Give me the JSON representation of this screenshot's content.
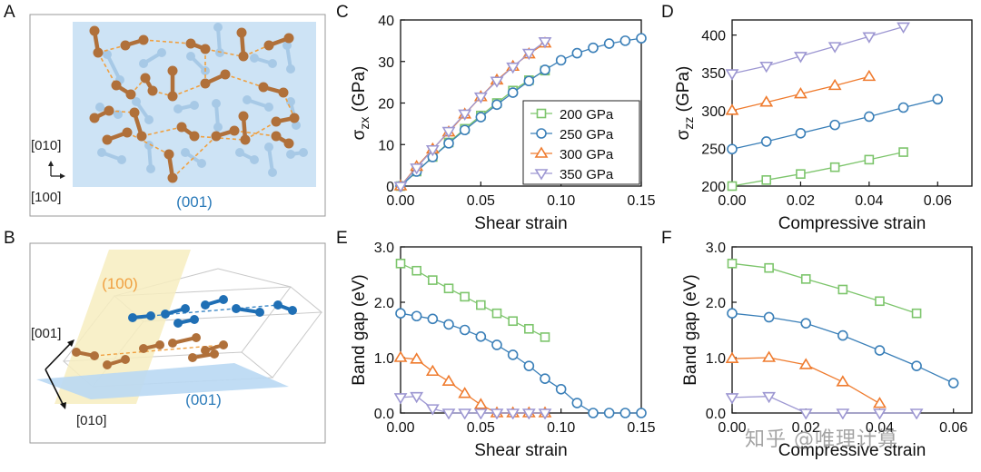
{
  "panel_labels": {
    "A": "A",
    "B": "B",
    "C": "C",
    "D": "D",
    "E": "E",
    "F": "F"
  },
  "panel_a": {
    "plane_label": "(001)",
    "axis_y_label": "[010]",
    "axis_x_label": "[100]",
    "colors": {
      "plane": "#cde3f5",
      "orange_atom": "#b0703a",
      "blue_atom": "#a7c9e6",
      "bond_dash": "#f0a040"
    }
  },
  "panel_b": {
    "plane_100_label": "(100)",
    "plane_001_label": "(001)",
    "axis_001_label": "[001]",
    "axis_010_label": "[010]",
    "colors": {
      "plane_100": "#f7edbf",
      "plane_001": "#b9d8f3",
      "orange_atom": "#b0703a",
      "blue_atom": "#1f6fb5"
    }
  },
  "legend": {
    "entries": [
      {
        "label": "200 GPa",
        "color": "#7dc56c",
        "marker": "square"
      },
      {
        "label": "250 GPa",
        "color": "#3a7fb8",
        "marker": "circle"
      },
      {
        "label": "300 GPa",
        "color": "#ef7b2e",
        "marker": "triangle-up"
      },
      {
        "label": "350 GPa",
        "color": "#9d97d2",
        "marker": "triangle-down"
      }
    ]
  },
  "chart_data": [
    {
      "panel": "C",
      "type": "line",
      "xlabel": "Shear strain",
      "ylabel": "σzx (GPa)",
      "xlim": [
        0,
        0.15
      ],
      "ylim": [
        0,
        40
      ],
      "xticks": [
        "0.00",
        "0.05",
        "0.10",
        "0.15"
      ],
      "yticks": [
        "0",
        "10",
        "20",
        "30",
        "40"
      ],
      "series": [
        {
          "name": "200 GPa",
          "x": [
            0,
            0.01,
            0.02,
            0.03,
            0.04,
            0.05,
            0.06,
            0.07,
            0.08,
            0.09
          ],
          "y": [
            0,
            3.5,
            7,
            10.5,
            13.8,
            17,
            20,
            23,
            25.5,
            27.8
          ]
        },
        {
          "name": "250 GPa",
          "x": [
            0,
            0.01,
            0.02,
            0.03,
            0.04,
            0.05,
            0.06,
            0.07,
            0.08,
            0.09,
            0.1,
            0.11,
            0.12,
            0.13,
            0.14,
            0.15
          ],
          "y": [
            0,
            3.5,
            7,
            10.3,
            13.5,
            16.6,
            19.6,
            22.5,
            25.3,
            28,
            30.3,
            32,
            33.3,
            34.3,
            35,
            35.6
          ]
        },
        {
          "name": "300 GPa",
          "x": [
            0,
            0.01,
            0.02,
            0.03,
            0.04,
            0.05,
            0.06,
            0.07,
            0.08,
            0.09
          ],
          "y": [
            0,
            4.7,
            8.9,
            13,
            17.3,
            21.5,
            25.5,
            28.8,
            31.8,
            34.4
          ]
        },
        {
          "name": "350 GPa",
          "x": [
            0,
            0.01,
            0.02,
            0.03,
            0.04,
            0.05,
            0.06,
            0.07,
            0.08,
            0.09
          ],
          "y": [
            0,
            4.4,
            8.8,
            13.2,
            17.4,
            21.5,
            25.3,
            28.7,
            32,
            34.8
          ]
        }
      ]
    },
    {
      "panel": "D",
      "type": "line",
      "xlabel": "Compressive strain",
      "ylabel": "σzz (GPa)",
      "xlim": [
        0,
        0.07
      ],
      "ylim": [
        200,
        420
      ],
      "xticks": [
        "0.00",
        "0.02",
        "0.04",
        "0.06"
      ],
      "yticks": [
        "200",
        "250",
        "300",
        "350",
        "400"
      ],
      "series": [
        {
          "name": "200 GPa",
          "x": [
            0,
            0.01,
            0.02,
            0.03,
            0.04,
            0.05
          ],
          "y": [
            200,
            208,
            216,
            225,
            235,
            245
          ]
        },
        {
          "name": "250 GPa",
          "x": [
            0,
            0.01,
            0.02,
            0.03,
            0.04,
            0.05,
            0.06
          ],
          "y": [
            249,
            259,
            270,
            281,
            292,
            304,
            315
          ]
        },
        {
          "name": "300 GPa",
          "x": [
            0,
            0.01,
            0.02,
            0.03,
            0.04
          ],
          "y": [
            300,
            311,
            322,
            333,
            345
          ]
        },
        {
          "name": "350 GPa",
          "x": [
            0,
            0.01,
            0.02,
            0.03,
            0.04,
            0.05
          ],
          "y": [
            349,
            359,
            372,
            385,
            398,
            411
          ]
        }
      ]
    },
    {
      "panel": "E",
      "type": "line",
      "xlabel": "Shear strain",
      "ylabel": "Band gap (eV)",
      "xlim": [
        0,
        0.15
      ],
      "ylim": [
        0,
        3
      ],
      "xticks": [
        "0.00",
        "0.05",
        "0.10",
        "0.15"
      ],
      "yticks": [
        "0.0",
        "1.0",
        "2.0",
        "3.0"
      ],
      "series": [
        {
          "name": "200 GPa",
          "x": [
            0,
            0.01,
            0.02,
            0.03,
            0.04,
            0.05,
            0.06,
            0.07,
            0.08,
            0.09
          ],
          "y": [
            2.7,
            2.57,
            2.4,
            2.25,
            2.1,
            1.95,
            1.8,
            1.66,
            1.52,
            1.37
          ]
        },
        {
          "name": "250 GPa",
          "x": [
            0,
            0.01,
            0.02,
            0.03,
            0.04,
            0.05,
            0.06,
            0.07,
            0.08,
            0.09,
            0.1,
            0.11,
            0.12,
            0.13,
            0.14,
            0.15
          ],
          "y": [
            1.8,
            1.75,
            1.7,
            1.6,
            1.5,
            1.38,
            1.23,
            1.05,
            0.85,
            0.62,
            0.43,
            0.18,
            0,
            0,
            0,
            0
          ]
        },
        {
          "name": "300 GPa",
          "x": [
            0,
            0.01,
            0.02,
            0.03,
            0.04,
            0.05,
            0.06,
            0.07,
            0.08,
            0.09
          ],
          "y": [
            1.0,
            0.97,
            0.75,
            0.57,
            0.35,
            0.15,
            0,
            0,
            0,
            0
          ]
        },
        {
          "name": "350 GPa",
          "x": [
            0,
            0.01,
            0.02,
            0.03,
            0.04,
            0.05,
            0.06,
            0.07,
            0.08,
            0.09
          ],
          "y": [
            0.28,
            0.3,
            0.08,
            0,
            0,
            0,
            0,
            0,
            0,
            0
          ]
        }
      ]
    },
    {
      "panel": "F",
      "type": "line",
      "xlabel": "Compressive strain",
      "ylabel": "Band gap (eV)",
      "xlim": [
        0,
        0.065
      ],
      "ylim": [
        0,
        3
      ],
      "xticks": [
        "0.00",
        "0.02",
        "0.04",
        "0.06"
      ],
      "yticks": [
        "0.0",
        "1.0",
        "2.0",
        "3.0"
      ],
      "series": [
        {
          "name": "200 GPa",
          "x": [
            0,
            0.01,
            0.02,
            0.03,
            0.04,
            0.05
          ],
          "y": [
            2.7,
            2.62,
            2.42,
            2.23,
            2.02,
            1.8
          ]
        },
        {
          "name": "250 GPa",
          "x": [
            0,
            0.01,
            0.02,
            0.03,
            0.04,
            0.05,
            0.06
          ],
          "y": [
            1.8,
            1.73,
            1.62,
            1.4,
            1.13,
            0.85,
            0.54
          ]
        },
        {
          "name": "300 GPa",
          "x": [
            0,
            0.01,
            0.02,
            0.03,
            0.04
          ],
          "y": [
            0.98,
            1.0,
            0.87,
            0.56,
            0.17
          ]
        },
        {
          "name": "350 GPa",
          "x": [
            0,
            0.01,
            0.02,
            0.03,
            0.04,
            0.05
          ],
          "y": [
            0.28,
            0.3,
            0,
            0,
            0,
            0
          ]
        }
      ]
    }
  ],
  "watermark": "知乎 @唯理计算"
}
